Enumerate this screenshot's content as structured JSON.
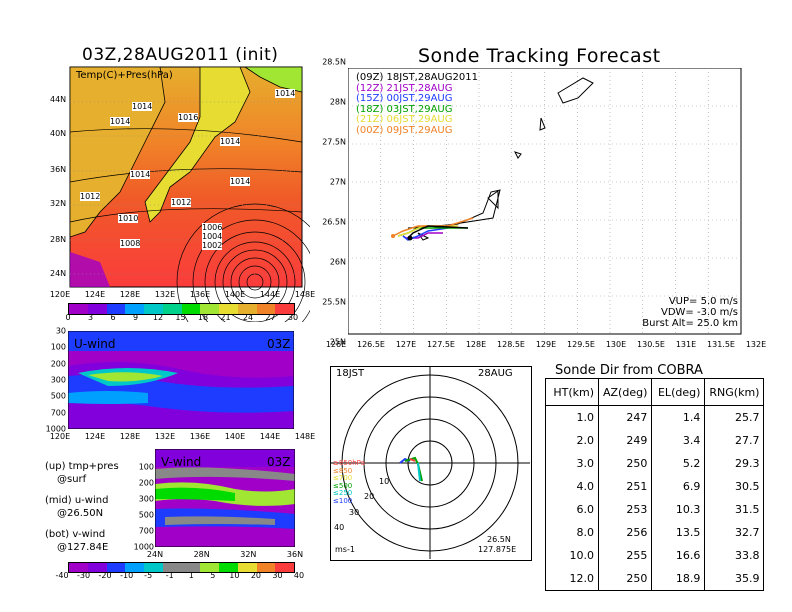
{
  "top_left": {
    "title": "03Z,28AUG2011 (init)",
    "map_label": "Temp(C)+Pres(hPa)",
    "isobars": [
      "1014",
      "1014",
      "1016",
      "1014",
      "1014",
      "1014",
      "1014",
      "1012",
      "1012",
      "1010",
      "1008",
      "1006",
      "1004",
      "1002"
    ],
    "lat_labels": [
      "44N",
      "40N",
      "36N",
      "32N",
      "28N",
      "24N"
    ],
    "lon_labels": [
      "120E",
      "124E",
      "128E",
      "132E",
      "136E",
      "140E",
      "144E",
      "148E"
    ],
    "colorbar": [
      "0",
      "3",
      "6",
      "9",
      "12",
      "15",
      "18",
      "21",
      "24",
      "27",
      "30"
    ],
    "colorbar_colors": [
      "#a000c8",
      "#8200dc",
      "#1e3cff",
      "#00a0ff",
      "#00c8c8",
      "#00d28c",
      "#00dc00",
      "#a0e632",
      "#e6dc32",
      "#e6af2d",
      "#f08228",
      "#fa3c3c"
    ]
  },
  "mid_left": {
    "label": "U-wind",
    "time": "03Z",
    "lon_labels": [
      "120E",
      "124E",
      "128E",
      "132E",
      "136E",
      "140E",
      "144E",
      "148E"
    ],
    "p_labels": [
      "30",
      "100",
      "200",
      "300",
      "500",
      "700",
      "1000"
    ]
  },
  "bot_left": {
    "label": "V-wind",
    "time": "03Z",
    "lat_labels": [
      "24N",
      "28N",
      "32N",
      "36N"
    ],
    "p_labels": [
      "100",
      "200",
      "300",
      "500",
      "700",
      "1000"
    ],
    "colorbar": [
      "-40",
      "-30",
      "-20",
      "-10",
      "-5",
      "-1",
      "1",
      "5",
      "10",
      "20",
      "30",
      "40"
    ],
    "notes": [
      "(up) tmp+pres",
      "@surf",
      "(mid) u-wind",
      "@26.50N",
      "(bot) v-wind",
      "@127.84E"
    ]
  },
  "forecast": {
    "title": "Sonde Tracking Forecast",
    "legend": [
      {
        "code": "(09Z)",
        "time": "18JST,28AUG2011",
        "color": "#000000"
      },
      {
        "code": "(12Z)",
        "time": "21JST,28AUG",
        "color": "#a000c8"
      },
      {
        "code": "(15Z)",
        "time": "00JST,29AUG",
        "color": "#1e3cff"
      },
      {
        "code": "(18Z)",
        "time": "03JST,29AUG",
        "color": "#00a000"
      },
      {
        "code": "(21Z)",
        "time": "06JST,29AUG",
        "color": "#e6dc32"
      },
      {
        "code": "(00Z)",
        "time": "09JST,29AUG",
        "color": "#f08228"
      }
    ],
    "lat_labels": [
      "28.5N",
      "28N",
      "27.5N",
      "27N",
      "26.5N",
      "26N",
      "25.5N",
      "25N"
    ],
    "lon_labels": [
      "126E",
      "126.5E",
      "127E",
      "127.5E",
      "128E",
      "128.5E",
      "129E",
      "129.5E",
      "130E",
      "130.5E",
      "131E",
      "131.5E",
      "132E"
    ],
    "params": [
      "VUP= 5.0 m/s",
      "VDW= -3.0 m/s",
      "Burst Alt= 25.0 km"
    ]
  },
  "polar": {
    "time": "18JST",
    "date": "28AUG",
    "loc_lat": "26.5N",
    "loc_lon": "127.875E",
    "unit": "ms-1",
    "ring_labels": [
      "10",
      "20",
      "30",
      "40"
    ],
    "legend": [
      {
        "text": "≥850hPa",
        "color": "#fa3c3c"
      },
      {
        "text": "≤850",
        "color": "#f08228"
      },
      {
        "text": "≤700",
        "color": "#e6dc32"
      },
      {
        "text": "≤500",
        "color": "#00a000"
      },
      {
        "text": "≤250",
        "color": "#00c8c8"
      },
      {
        "text": "≤100",
        "color": "#1e3cff"
      }
    ]
  },
  "chart_data": {
    "type": "table",
    "title": "Sonde Dir from COBRA",
    "columns": [
      "HT(km)",
      "AZ(deg)",
      "EL(deg)",
      "RNG(km)"
    ],
    "rows": [
      [
        "1.0",
        "247",
        "1.4",
        "25.7"
      ],
      [
        "2.0",
        "249",
        "3.4",
        "27.7"
      ],
      [
        "3.0",
        "250",
        "5.2",
        "29.3"
      ],
      [
        "4.0",
        "251",
        "6.9",
        "30.5"
      ],
      [
        "6.0",
        "253",
        "10.3",
        "31.5"
      ],
      [
        "8.0",
        "256",
        "13.5",
        "32.7"
      ],
      [
        "10.0",
        "255",
        "16.6",
        "33.8"
      ],
      [
        "12.0",
        "250",
        "18.9",
        "35.9"
      ]
    ]
  }
}
